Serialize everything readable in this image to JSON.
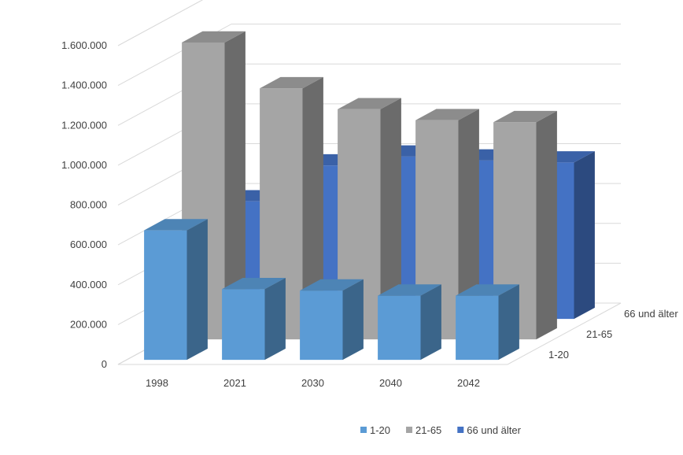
{
  "chart_data": {
    "type": "bar",
    "variant": "3d-column-depth",
    "title": "",
    "xlabel": "",
    "ylabel": "",
    "categories": [
      "1998",
      "2021",
      "2030",
      "2040",
      "2042"
    ],
    "series": [
      {
        "name": "1-20",
        "values": [
          650000,
          355000,
          348000,
          322000,
          322000
        ],
        "color": "#5b9bd5"
      },
      {
        "name": "21-65",
        "values": [
          1490000,
          1260000,
          1155000,
          1100000,
          1090000
        ],
        "color": "#a5a5a5"
      },
      {
        "name": "66 und älter",
        "values": [
          590000,
          770000,
          815000,
          795000,
          785000
        ],
        "color": "#4472c4"
      }
    ],
    "ylim": [
      0,
      1600000
    ],
    "yticks": [
      "0",
      "200.000",
      "400.000",
      "600.000",
      "800.000",
      "1.000.000",
      "1.200.000",
      "1.400.000",
      "1.600.000"
    ],
    "depth_labels": [
      "1-20",
      "21-65",
      "66 und älter"
    ],
    "grid": true,
    "legend": "bottom"
  }
}
